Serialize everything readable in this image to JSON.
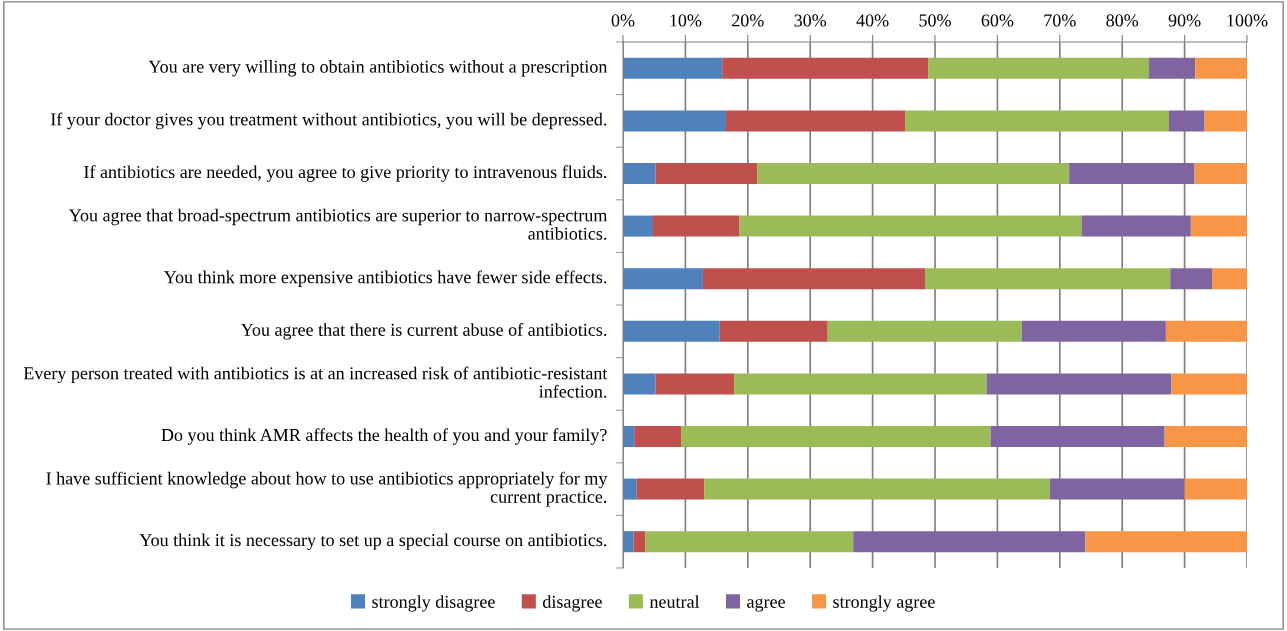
{
  "chart_data": {
    "type": "bar",
    "orientation": "horizontal",
    "stacked": true,
    "categories": [
      "You are very willing to obtain antibiotics without a prescription",
      "If your doctor gives you treatment without antibiotics, you will be depressed.",
      "If antibiotics are needed, you agree to give priority to intravenous fluids.",
      "You agree that broad-spectrum antibiotics are superior to narrow-spectrum antibiotics.",
      "You think more expensive antibiotics have fewer side effects.",
      "You agree that there is current abuse of antibiotics.",
      "Every person treated with antibiotics is at an increased risk of antibiotic-resistant infection.",
      "Do you think AMR affects the health of you and your family?",
      "I have sufficient knowledge about how to use antibiotics appropriately for my current practice.",
      "You think it is necessary to set up a special course on antibiotics."
    ],
    "series": [
      {
        "name": "strongly disagree",
        "color": "#4f81bd",
        "values": [
          15.9,
          16.5,
          5.2,
          4.8,
          12.8,
          15.5,
          5.2,
          1.8,
          2.2,
          1.7
        ]
      },
      {
        "name": "disagree",
        "color": "#c0504d",
        "values": [
          33.0,
          28.7,
          16.3,
          13.8,
          35.6,
          17.3,
          12.6,
          7.5,
          10.8,
          1.9
        ]
      },
      {
        "name": "neutral",
        "color": "#9bbb59",
        "values": [
          35.4,
          42.3,
          50.0,
          54.9,
          39.3,
          31.1,
          40.5,
          49.6,
          55.4,
          33.3
        ]
      },
      {
        "name": "agree",
        "color": "#8064a2",
        "values": [
          7.4,
          5.7,
          20.1,
          17.5,
          6.7,
          23.1,
          29.6,
          27.9,
          21.6,
          37.2
        ]
      },
      {
        "name": "strongly agree",
        "color": "#f79646",
        "values": [
          8.3,
          6.8,
          8.4,
          9.0,
          5.6,
          13.0,
          12.1,
          13.2,
          10.0,
          25.9
        ]
      }
    ],
    "xlim": [
      0,
      100
    ],
    "xticks": [
      {
        "value": 0,
        "label": "0%"
      },
      {
        "value": 10,
        "label": "10%"
      },
      {
        "value": 20,
        "label": "20%"
      },
      {
        "value": 30,
        "label": "30%"
      },
      {
        "value": 40,
        "label": "40%"
      },
      {
        "value": 50,
        "label": "50%"
      },
      {
        "value": 60,
        "label": "60%"
      },
      {
        "value": 70,
        "label": "70%"
      },
      {
        "value": 80,
        "label": "80%"
      },
      {
        "value": 90,
        "label": "90%"
      },
      {
        "value": 100,
        "label": "100%"
      }
    ],
    "grid": "x",
    "legend": "bottom"
  }
}
